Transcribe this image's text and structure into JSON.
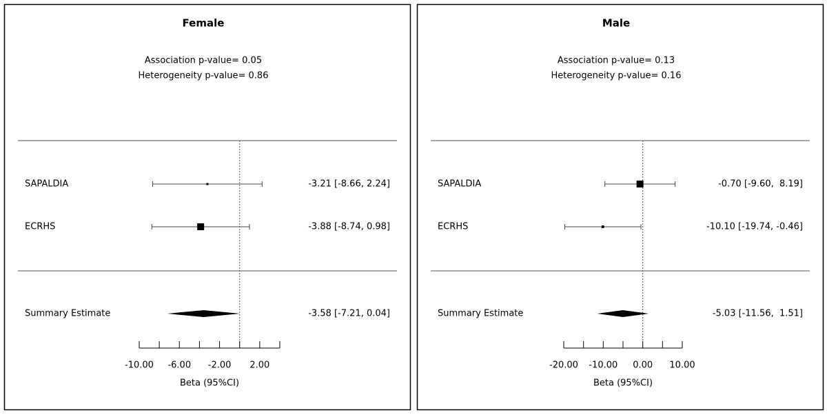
{
  "chart_data": [
    {
      "type": "forest",
      "title": "Female",
      "annotations": [
        "Association p-value= 0.05",
        "Heterogeneity p-value= 0.86"
      ],
      "categories": [
        "SAPALDIA",
        "ECRHS"
      ],
      "values": [
        -3.21,
        -3.88
      ],
      "lower": [
        -8.66,
        -8.74
      ],
      "upper": [
        2.24,
        0.98
      ],
      "value_labels": [
        "-3.21 [-8.66, 2.24]",
        "-3.88 [-8.74, 0.98]"
      ],
      "summary": {
        "label": "Summary Estimate",
        "value": -3.58,
        "lower": -7.21,
        "upper": 0.04,
        "value_label": "-3.58 [-7.21, 0.04]"
      },
      "xlabel": "Beta (95%CI)",
      "xlim": [
        -10,
        4
      ],
      "xticks": [
        {
          "value": -10,
          "label": "-10.00"
        },
        {
          "value": -6,
          "label": "-6.00"
        },
        {
          "value": -2,
          "label": "-2.00"
        },
        {
          "value": 2,
          "label": "2.00"
        }
      ],
      "minor_xticks": [
        -8,
        -4,
        0,
        4
      ],
      "ref_line": 0
    },
    {
      "type": "forest",
      "title": "Male",
      "annotations": [
        "Association p-value= 0.13",
        "Heterogeneity p-value= 0.16"
      ],
      "categories": [
        "SAPALDIA",
        "ECRHS"
      ],
      "values": [
        -0.7,
        -10.1
      ],
      "lower": [
        -9.6,
        -19.74
      ],
      "upper": [
        8.19,
        -0.46
      ],
      "value_labels": [
        "-0.70 [-9.60,  8.19]",
        "-10.10 [-19.74, -0.46]"
      ],
      "summary": {
        "label": "Summary Estimate",
        "value": -5.03,
        "lower": -11.56,
        "upper": 1.51,
        "value_label": "-5.03 [-11.56,  1.51]"
      },
      "xlabel": "Beta (95%CI)",
      "xlim": [
        -20,
        10
      ],
      "xticks": [
        {
          "value": -20,
          "label": "-20.00"
        },
        {
          "value": -10,
          "label": "-10.00"
        },
        {
          "value": 0,
          "label": "0.00"
        },
        {
          "value": 10,
          "label": "10.00"
        }
      ],
      "minor_xticks": [
        -15,
        -5,
        5
      ],
      "ref_line": 0
    }
  ]
}
